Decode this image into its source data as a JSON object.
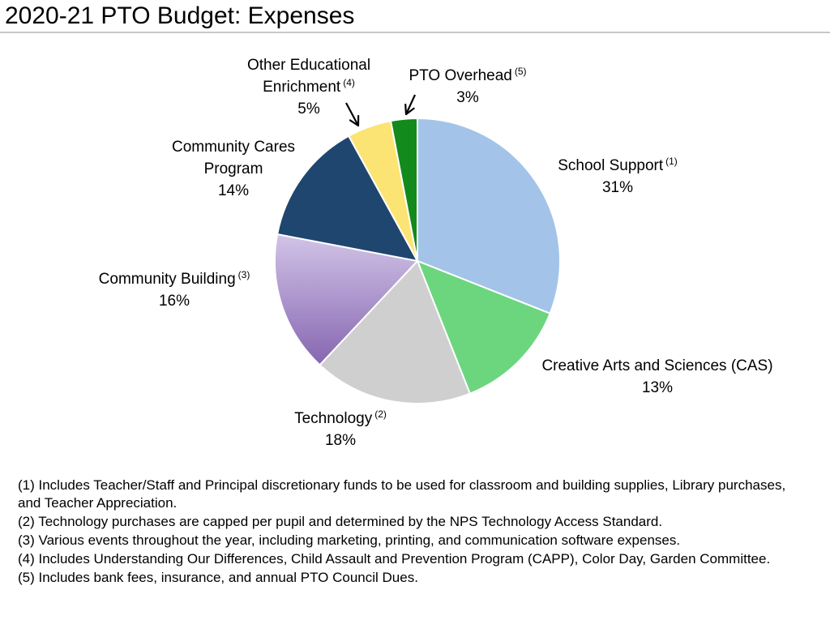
{
  "page": {
    "title": "2020-21 PTO Budget: Expenses"
  },
  "chart_data": {
    "type": "pie",
    "title": "2020-21 PTO Budget: Expenses",
    "start_angle_deg": 0,
    "direction": "clockwise",
    "slices": [
      {
        "name": "School Support",
        "lines": [
          "School Support"
        ],
        "note": "(1)",
        "value": 31,
        "value_label": "31%",
        "color": "#a3c4e8"
      },
      {
        "name": "Creative Arts and Sciences (CAS)",
        "lines": [
          "Creative Arts and Sciences (CAS)"
        ],
        "note": "",
        "value": 13,
        "value_label": "13%",
        "color": "#6cd67e"
      },
      {
        "name": "Technology",
        "lines": [
          "Technology"
        ],
        "note": "(2)",
        "value": 18,
        "value_label": "18%",
        "color": "#cfcfcf"
      },
      {
        "name": "Community Building",
        "lines": [
          "Community Building"
        ],
        "note": "(3)",
        "value": 16,
        "value_label": "16%",
        "color": "#a88cc8",
        "gradient": [
          "#d2c4e8",
          "#8666b0"
        ]
      },
      {
        "name": "Community Cares Program",
        "lines": [
          "Community Cares",
          "Program"
        ],
        "note": "",
        "value": 14,
        "value_label": "14%",
        "color": "#1f466e"
      },
      {
        "name": "Other Educational Enrichment",
        "lines": [
          "Other Educational",
          "Enrichment"
        ],
        "note": "(4)",
        "value": 5,
        "value_label": "5%",
        "color": "#fce474"
      },
      {
        "name": "PTO Overhead",
        "lines": [
          "PTO Overhead"
        ],
        "note": "(5)",
        "value": 3,
        "value_label": "3%",
        "color": "#138a1c"
      }
    ]
  },
  "footnotes": [
    "(1) Includes Teacher/Staff and Principal discretionary funds to be used for classroom and building supplies, Library purchases, and Teacher Appreciation.",
    "(2) Technology purchases are capped per pupil and determined by the NPS Technology Access Standard.",
    "(3) Various events throughout the year, including marketing, printing, and communication software expenses.",
    "(4) Includes Understanding Our Differences, Child Assault and Prevention Program (CAPP), Color Day, Garden Committee.",
    "(5) Includes bank fees, insurance, and annual PTO Council Dues."
  ]
}
